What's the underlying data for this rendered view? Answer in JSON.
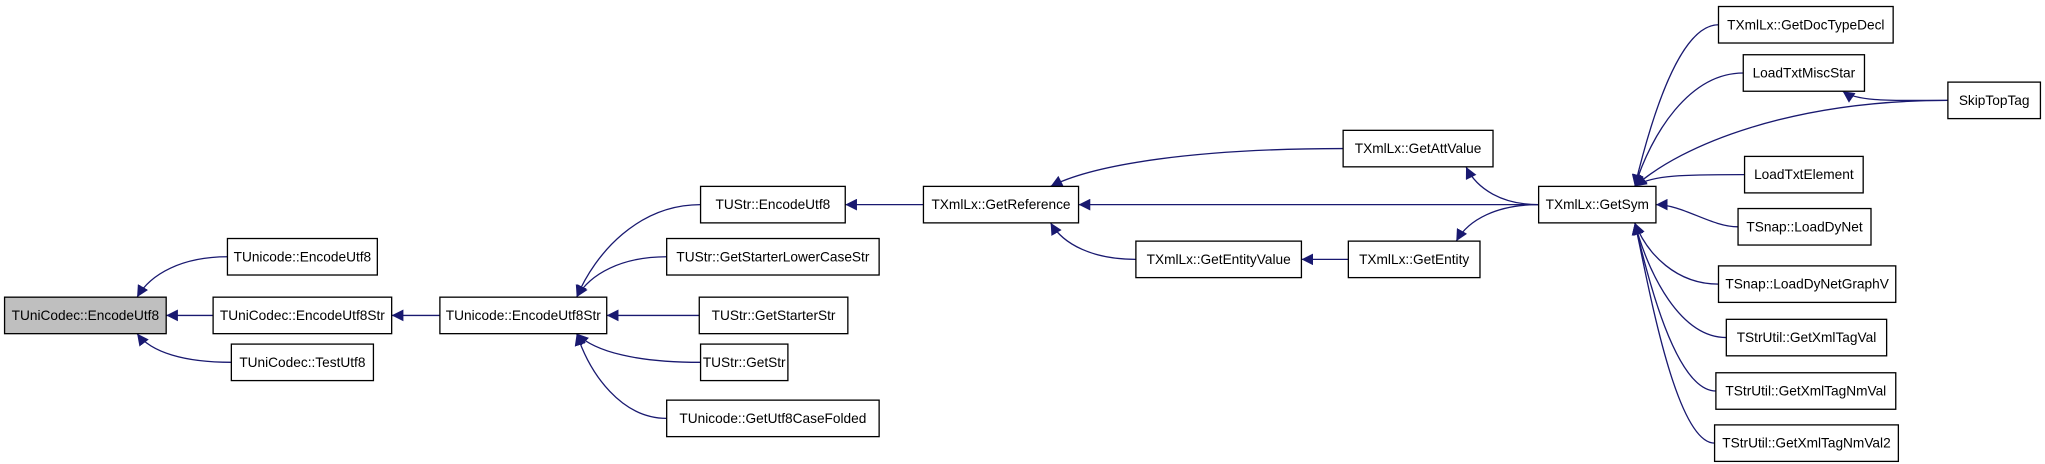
{
  "graph": {
    "edge_color": "#191970",
    "focus_fill": "#bfbfbf",
    "nodes": [
      {
        "id": "n0",
        "label": "TUniCodec::EncodeUtf8",
        "focus": true
      },
      {
        "id": "n1",
        "label": "TUnicode::EncodeUtf8"
      },
      {
        "id": "n2",
        "label": "TUniCodec::EncodeUtf8Str"
      },
      {
        "id": "n3",
        "label": "TUniCodec::TestUtf8"
      },
      {
        "id": "n4",
        "label": "TUnicode::EncodeUtf8Str"
      },
      {
        "id": "n5",
        "label": "TUStr::EncodeUtf8"
      },
      {
        "id": "n6",
        "label": "TUStr::GetStarterLowerCaseStr"
      },
      {
        "id": "n7",
        "label": "TUStr::GetStarterStr"
      },
      {
        "id": "n8",
        "label": "TUStr::GetStr"
      },
      {
        "id": "n9",
        "label": "TUnicode::GetUtf8CaseFolded"
      },
      {
        "id": "n10",
        "label": "TXmlLx::GetReference"
      },
      {
        "id": "n11",
        "label": "TXmlLx::GetAttValue"
      },
      {
        "id": "n12",
        "label": "TXmlLx::GetEntityValue"
      },
      {
        "id": "n13",
        "label": "TXmlLx::GetEntity"
      },
      {
        "id": "n14",
        "label": "TXmlLx::GetSym"
      },
      {
        "id": "n15",
        "label": "TXmlLx::GetDocTypeDecl"
      },
      {
        "id": "n16",
        "label": "LoadTxtMiscStar"
      },
      {
        "id": "n17",
        "label": "SkipTopTag"
      },
      {
        "id": "n18",
        "label": "LoadTxtElement"
      },
      {
        "id": "n19",
        "label": "TSnap::LoadDyNet"
      },
      {
        "id": "n20",
        "label": "TSnap::LoadDyNetGraphV"
      },
      {
        "id": "n21",
        "label": "TStrUtil::GetXmlTagVal"
      },
      {
        "id": "n22",
        "label": "TStrUtil::GetXmlTagNmVal"
      },
      {
        "id": "n23",
        "label": "TStrUtil::GetXmlTagNmVal2"
      }
    ],
    "edges": [
      {
        "from": "n1",
        "to": "n0"
      },
      {
        "from": "n2",
        "to": "n0"
      },
      {
        "from": "n3",
        "to": "n0"
      },
      {
        "from": "n4",
        "to": "n2"
      },
      {
        "from": "n5",
        "to": "n4"
      },
      {
        "from": "n6",
        "to": "n4"
      },
      {
        "from": "n7",
        "to": "n4"
      },
      {
        "from": "n8",
        "to": "n4"
      },
      {
        "from": "n9",
        "to": "n4"
      },
      {
        "from": "n10",
        "to": "n5"
      },
      {
        "from": "n11",
        "to": "n10"
      },
      {
        "from": "n14",
        "to": "n10"
      },
      {
        "from": "n12",
        "to": "n10"
      },
      {
        "from": "n13",
        "to": "n12"
      },
      {
        "from": "n14",
        "to": "n11"
      },
      {
        "from": "n14",
        "to": "n13"
      },
      {
        "from": "n15",
        "to": "n14"
      },
      {
        "from": "n16",
        "to": "n14"
      },
      {
        "from": "n17",
        "to": "n14"
      },
      {
        "from": "n17",
        "to": "n16"
      },
      {
        "from": "n18",
        "to": "n14"
      },
      {
        "from": "n19",
        "to": "n14"
      },
      {
        "from": "n20",
        "to": "n14"
      },
      {
        "from": "n21",
        "to": "n14"
      },
      {
        "from": "n22",
        "to": "n14"
      },
      {
        "from": "n23",
        "to": "n14"
      }
    ]
  }
}
